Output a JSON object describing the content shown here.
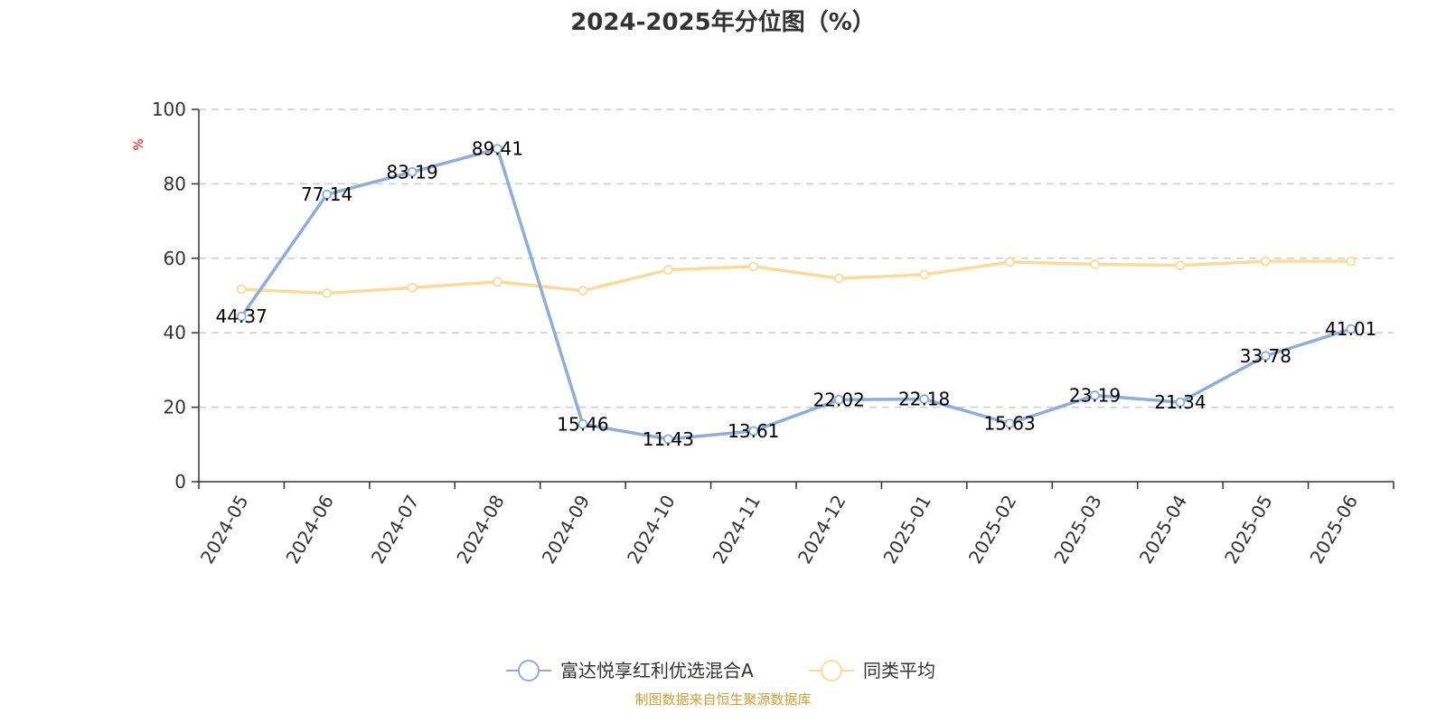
{
  "chart_data": {
    "type": "line",
    "title": "2024-2025年分位图（%）",
    "ylabel": "%",
    "xlabel": "",
    "ylim": [
      0,
      100
    ],
    "yticks": [
      0,
      20,
      40,
      60,
      80,
      100
    ],
    "grid": true,
    "legend_position": "bottom-center",
    "categories": [
      "2024-05",
      "2024-06",
      "2024-07",
      "2024-08",
      "2024-09",
      "2024-10",
      "2024-11",
      "2024-12",
      "2025-01",
      "2025-02",
      "2025-03",
      "2025-04",
      "2025-05",
      "2025-06"
    ],
    "series": [
      {
        "name": "富达悦享红利优选混合A",
        "color": "#8eaed8",
        "show_labels": true,
        "values": [
          44.37,
          77.14,
          83.19,
          89.41,
          15.46,
          11.43,
          13.61,
          22.02,
          22.18,
          15.63,
          23.19,
          21.34,
          33.78,
          41.01
        ]
      },
      {
        "name": "同类平均",
        "color": "#fdd99b",
        "show_labels": false,
        "values": [
          51.7,
          50.6,
          52.1,
          53.7,
          51.3,
          56.9,
          57.8,
          54.6,
          55.6,
          59.0,
          58.4,
          58.1,
          59.2,
          59.2
        ]
      }
    ],
    "source_note": "制图数据来自恒生聚源数据库"
  },
  "colors": {
    "axis": "#333333",
    "grid": "#cccccc",
    "unit": "#ff0000",
    "source": "#c8a03c"
  }
}
